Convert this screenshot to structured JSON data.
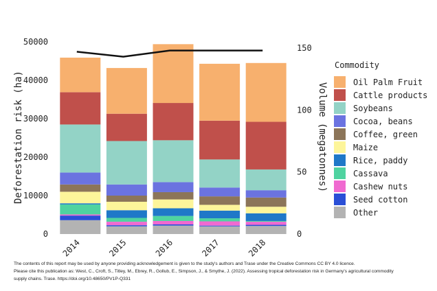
{
  "chart_data": {
    "type": "bar",
    "stacked": true,
    "categories": [
      "2014",
      "2015",
      "2016",
      "2017",
      "2018"
    ],
    "ylabel": "Deforestation risk (ha)",
    "ylim": [
      0,
      50000
    ],
    "yticks": [
      0,
      10000,
      20000,
      30000,
      40000,
      50000
    ],
    "y2label": "Volume (megatonnes)",
    "y2lim": [
      0,
      150
    ],
    "y2ticks": [
      0,
      50,
      100,
      150
    ],
    "legend_title": "Commodity",
    "legend_position": "right",
    "series": [
      {
        "name": "Other",
        "color": "#b3b3b3",
        "values": [
          3600,
          2000,
          2200,
          2000,
          2100
        ]
      },
      {
        "name": "Seed cotton",
        "color": "#2a4fd6",
        "values": [
          1200,
          300,
          300,
          200,
          300
        ]
      },
      {
        "name": "Cashew nuts",
        "color": "#f06ad0",
        "values": [
          300,
          900,
          900,
          1100,
          800
        ]
      },
      {
        "name": "Cassava",
        "color": "#4fd3a0",
        "values": [
          2600,
          1000,
          1300,
          800,
          200
        ]
      },
      {
        "name": "Rice, paddy",
        "color": "#1f78c8",
        "values": [
          300,
          2000,
          2000,
          2000,
          2000
        ]
      },
      {
        "name": "Maize",
        "color": "#fdf59a",
        "values": [
          3000,
          2200,
          2300,
          1500,
          1700
        ]
      },
      {
        "name": "Coffee, green",
        "color": "#8c7559",
        "values": [
          1900,
          1600,
          1900,
          2200,
          2400
        ]
      },
      {
        "name": "Cocoa, beans",
        "color": "#6b73e0",
        "values": [
          3100,
          2900,
          2600,
          2300,
          1900
        ]
      },
      {
        "name": "Soybeans",
        "color": "#93d3c6",
        "values": [
          12500,
          11300,
          10900,
          7300,
          5400
        ]
      },
      {
        "name": "Cattle products",
        "color": "#c0504b",
        "values": [
          8400,
          7100,
          9700,
          10100,
          12400
        ]
      },
      {
        "name": "Oil Palm Fruit",
        "color": "#f7b06e",
        "values": [
          9000,
          11900,
          15300,
          14800,
          15300
        ]
      }
    ],
    "volume_line": {
      "name": "Volume",
      "color": "#111111",
      "values": [
        147,
        143,
        148,
        148,
        148
      ]
    }
  },
  "footer": {
    "line1": "The contents of this report may be used by anyone providing acknowledgement is given to the study's authors and Trase under the Creative Commons CC BY 4.0 licence.",
    "line2": "Please cite this publication as: West, C., Croft, S., Titley, M., Ebrey, R., Gollub, E., Simpson, J., & Smythe, J. (2022). Assessing tropical deforestation risk in Germany's agricultural commodity",
    "line3": "supply chains. Trase. https://doi.org/10.48650/PV1P-Q331"
  }
}
